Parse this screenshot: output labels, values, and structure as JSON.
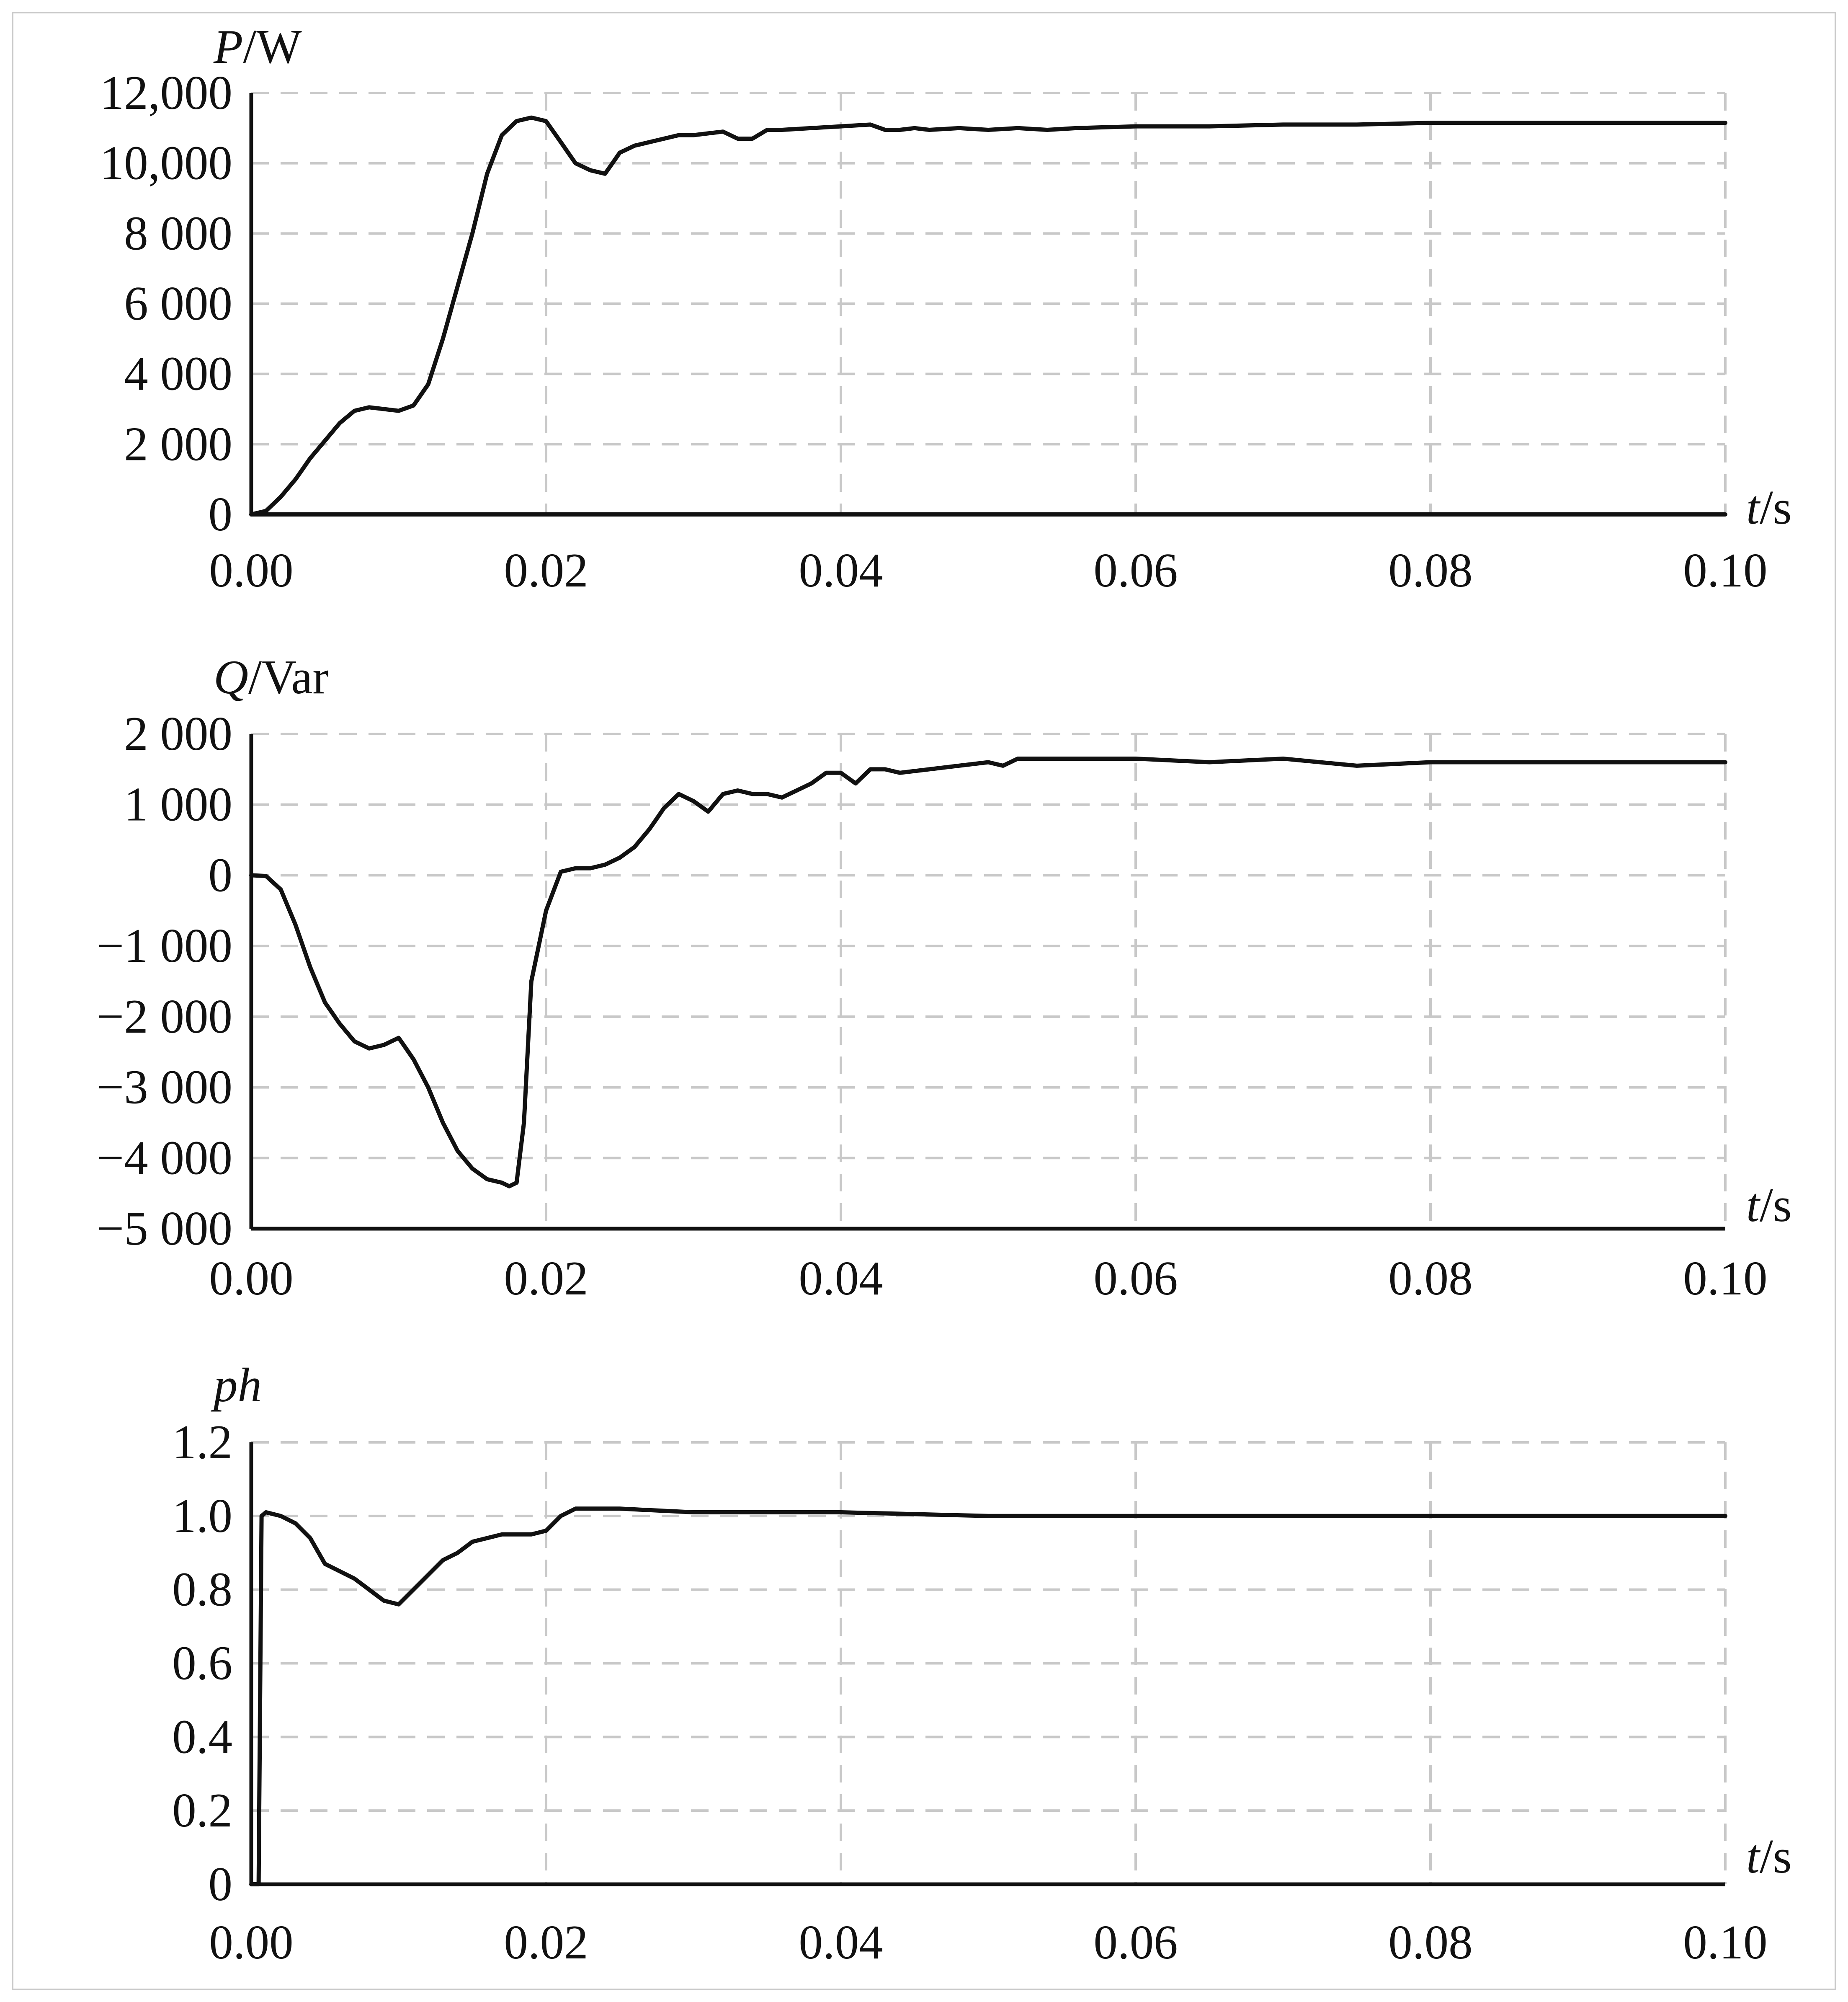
{
  "style": {
    "line_color": "#111111",
    "grid_color": "#c8c8c8",
    "frame_color": "#c8c8c8"
  },
  "chart_data": [
    {
      "type": "line",
      "grid": true,
      "ylabel": {
        "symbol": "P",
        "unit": "/W"
      },
      "xlabel": {
        "symbol": "t",
        "unit": "/s"
      },
      "xlim": [
        0,
        0.1
      ],
      "ylim": [
        0,
        12000
      ],
      "xticks": [
        "0.00",
        "0.02",
        "0.04",
        "0.06",
        "0.08",
        "0.10"
      ],
      "yticks": [
        "0",
        "2 000",
        "4 000",
        "6 000",
        "8 000",
        "10,000",
        "12,000"
      ],
      "series": [
        {
          "x": [
            0,
            0.001,
            0.002,
            0.003,
            0.004,
            0.005,
            0.006,
            0.007,
            0.008,
            0.009,
            0.01,
            0.011,
            0.012,
            0.013,
            0.014,
            0.015,
            0.016,
            0.017,
            0.018,
            0.019,
            0.02,
            0.021,
            0.022,
            0.023,
            0.024,
            0.025,
            0.026,
            0.027,
            0.028,
            0.029,
            0.03,
            0.031,
            0.032,
            0.033,
            0.034,
            0.035,
            0.036,
            0.038,
            0.04,
            0.042,
            0.043,
            0.044,
            0.045,
            0.046,
            0.048,
            0.05,
            0.052,
            0.054,
            0.056,
            0.06,
            0.065,
            0.07,
            0.075,
            0.08,
            0.085,
            0.09,
            0.095,
            0.1
          ],
          "y": [
            0,
            100,
            500,
            1000,
            1600,
            2100,
            2600,
            2950,
            3050,
            3000,
            2950,
            3100,
            3700,
            5000,
            6500,
            8000,
            9700,
            10800,
            11200,
            11300,
            11200,
            10600,
            10000,
            9800,
            9700,
            10300,
            10500,
            10600,
            10700,
            10800,
            10800,
            10850,
            10900,
            10700,
            10700,
            10950,
            10950,
            11000,
            11050,
            11100,
            10950,
            10950,
            11000,
            10950,
            11000,
            10950,
            11000,
            10950,
            11000,
            11050,
            11050,
            11100,
            11100,
            11150,
            11150,
            11150,
            11150,
            11150
          ]
        },
        {
          "x": [
            0,
            0.1
          ],
          "y": [
            0,
            0
          ]
        }
      ]
    },
    {
      "type": "line",
      "grid": true,
      "ylabel": {
        "symbol": "Q",
        "unit": "/Var"
      },
      "xlabel": {
        "symbol": "t",
        "unit": "/s"
      },
      "xlim": [
        0,
        0.1
      ],
      "ylim": [
        -5000,
        2000
      ],
      "xticks": [
        "0.00",
        "0.02",
        "0.04",
        "0.06",
        "0.08",
        "0.10"
      ],
      "yticks": [
        "−5 000",
        "−4 000",
        "−3 000",
        "−2 000",
        "−1 000",
        "0",
        "1 000",
        "2 000"
      ],
      "series": [
        {
          "x": [
            0,
            0.001,
            0.002,
            0.003,
            0.004,
            0.005,
            0.006,
            0.007,
            0.008,
            0.009,
            0.01,
            0.011,
            0.012,
            0.013,
            0.014,
            0.015,
            0.016,
            0.017,
            0.0175,
            0.018,
            0.0185,
            0.019,
            0.02,
            0.021,
            0.022,
            0.023,
            0.024,
            0.025,
            0.026,
            0.027,
            0.028,
            0.029,
            0.03,
            0.031,
            0.032,
            0.033,
            0.034,
            0.035,
            0.036,
            0.037,
            0.038,
            0.039,
            0.04,
            0.041,
            0.042,
            0.043,
            0.044,
            0.046,
            0.048,
            0.05,
            0.051,
            0.052,
            0.055,
            0.058,
            0.06,
            0.065,
            0.07,
            0.075,
            0.08,
            0.085,
            0.09,
            0.095,
            0.1
          ],
          "y": [
            0,
            -10,
            -200,
            -700,
            -1300,
            -1800,
            -2100,
            -2350,
            -2450,
            -2400,
            -2300,
            -2600,
            -3000,
            -3500,
            -3900,
            -4150,
            -4300,
            -4350,
            -4400,
            -4350,
            -3500,
            -1500,
            -500,
            50,
            100,
            100,
            150,
            250,
            400,
            650,
            950,
            1150,
            1050,
            900,
            1150,
            1200,
            1150,
            1150,
            1100,
            1200,
            1300,
            1450,
            1450,
            1300,
            1500,
            1500,
            1450,
            1500,
            1550,
            1600,
            1550,
            1650,
            1650,
            1650,
            1650,
            1600,
            1650,
            1550,
            1600,
            1600,
            1600,
            1600,
            1600
          ]
        }
      ]
    },
    {
      "type": "line",
      "grid": true,
      "ylabel": {
        "symbol": "ph",
        "unit": ""
      },
      "xlabel": {
        "symbol": "t",
        "unit": "/s"
      },
      "xlim": [
        0,
        0.1
      ],
      "ylim": [
        0,
        1.2
      ],
      "xticks": [
        "0.00",
        "0.02",
        "0.04",
        "0.06",
        "0.08",
        "0.10"
      ],
      "yticks": [
        "0",
        "0.2",
        "0.4",
        "0.6",
        "0.8",
        "1.0",
        "1.2"
      ],
      "series": [
        {
          "x": [
            0,
            0.0005,
            0.0007,
            0.001,
            0.002,
            0.003,
            0.004,
            0.005,
            0.006,
            0.007,
            0.008,
            0.009,
            0.01,
            0.011,
            0.012,
            0.013,
            0.014,
            0.015,
            0.016,
            0.017,
            0.018,
            0.019,
            0.02,
            0.021,
            0.022,
            0.023,
            0.025,
            0.03,
            0.04,
            0.05,
            0.06,
            0.07,
            0.08,
            0.09,
            0.1
          ],
          "y": [
            0,
            0,
            1.0,
            1.01,
            1.0,
            0.98,
            0.94,
            0.87,
            0.85,
            0.83,
            0.8,
            0.77,
            0.76,
            0.8,
            0.84,
            0.88,
            0.9,
            0.93,
            0.94,
            0.95,
            0.95,
            0.95,
            0.96,
            1.0,
            1.02,
            1.02,
            1.02,
            1.01,
            1.01,
            1.0,
            1.0,
            1.0,
            1.0,
            1.0,
            1.0
          ]
        }
      ]
    }
  ]
}
